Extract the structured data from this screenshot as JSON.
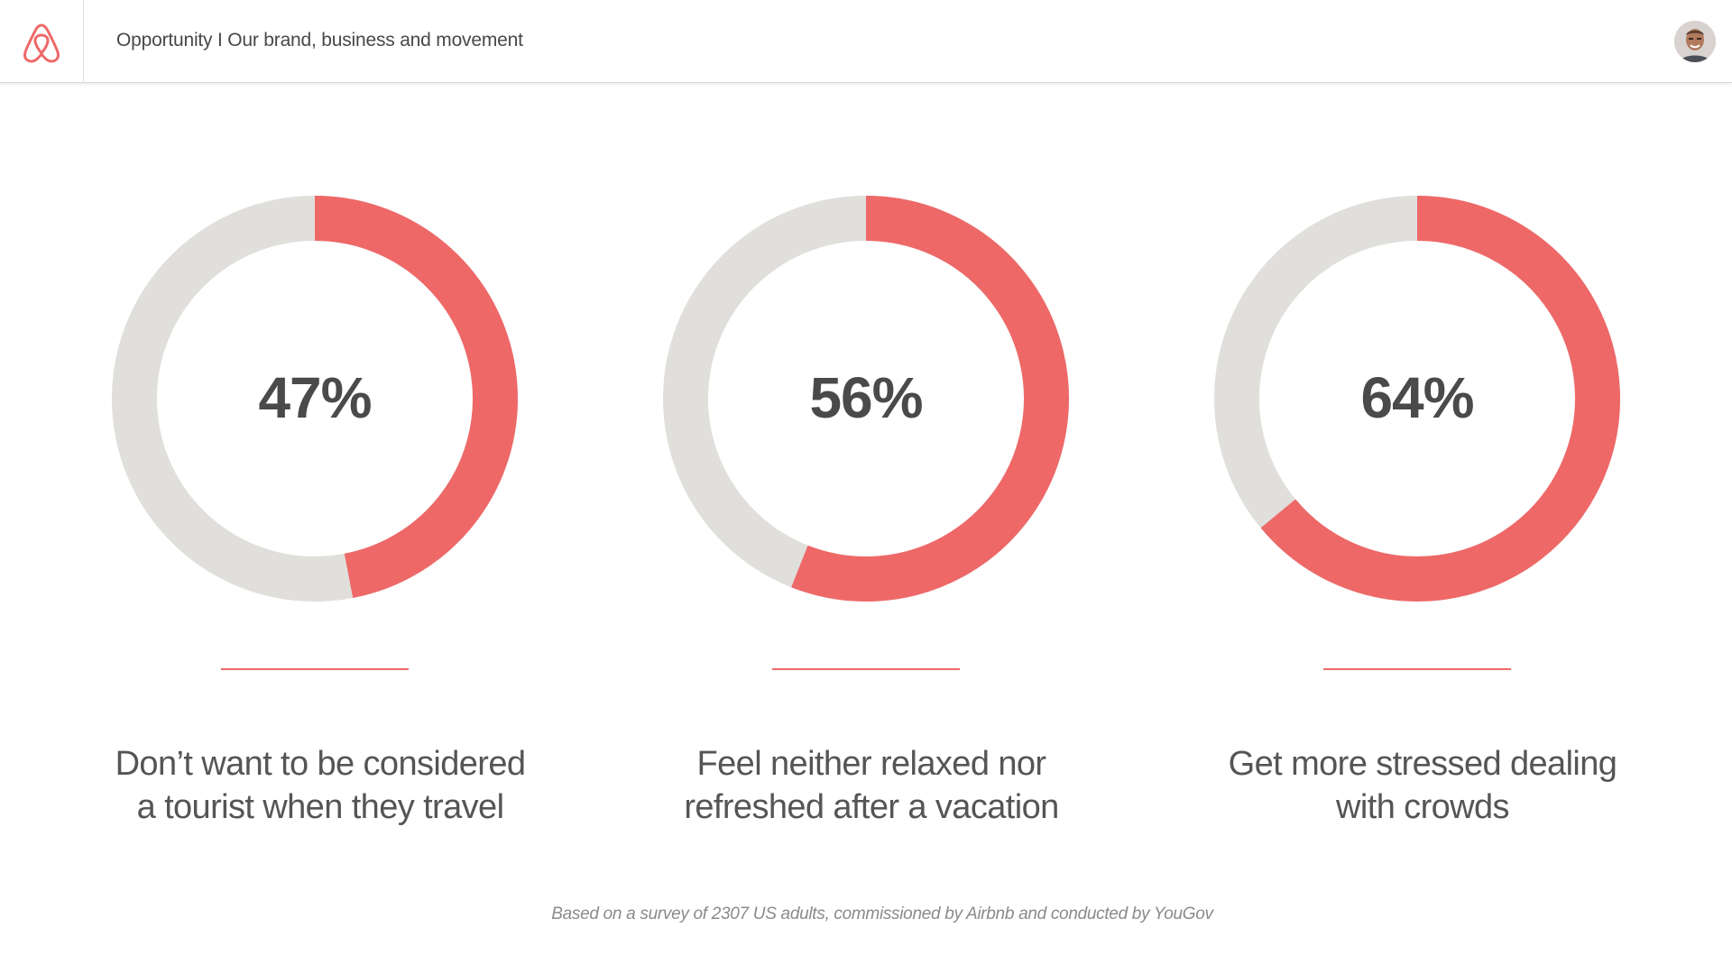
{
  "header": {
    "title": "Opportunity I Our brand, business and movement",
    "logo_icon": "airbnb-belo-icon",
    "avatar_icon": "user-avatar"
  },
  "colors": {
    "accent": "#EE6868",
    "track": "#E0DFDC",
    "text": "#4A4A4A"
  },
  "chart_data": [
    {
      "type": "pie",
      "value": 47,
      "label": "47%",
      "caption_lines": [
        "Don’t want to be considered",
        "a tourist when they travel"
      ]
    },
    {
      "type": "pie",
      "value": 56,
      "label": "56%",
      "caption_lines": [
        "Feel neither relaxed nor",
        "refreshed after a vacation"
      ]
    },
    {
      "type": "pie",
      "value": 64,
      "label": "64%",
      "caption_lines": [
        "Get more stressed dealing",
        "with crowds"
      ]
    }
  ],
  "footnote": "Based on a survey of 2307 US adults, commissioned by Airbnb and conducted by YouGov"
}
